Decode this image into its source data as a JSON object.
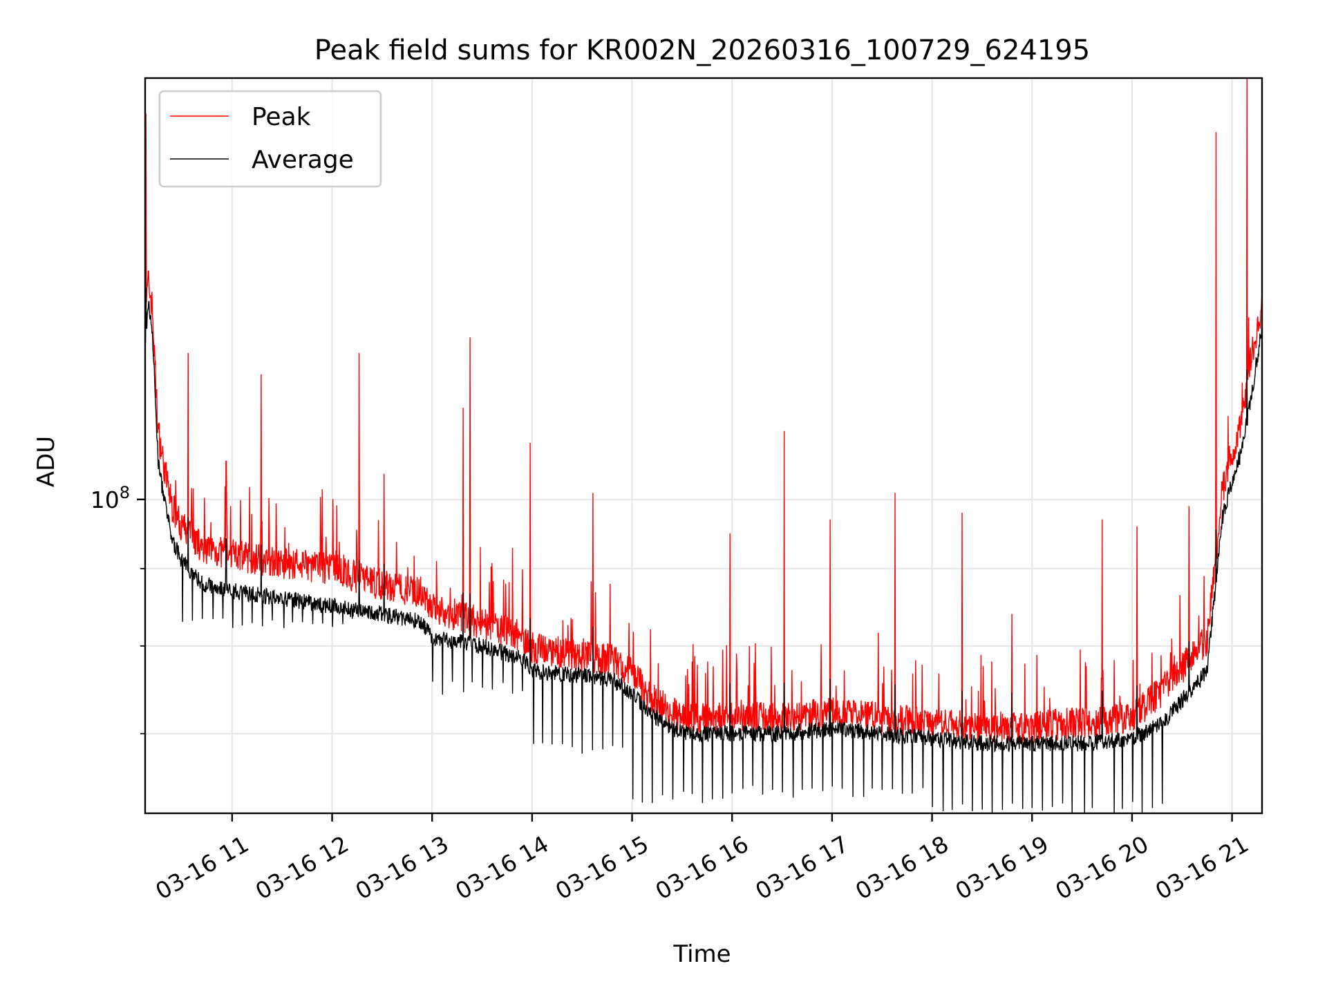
{
  "chart_data": {
    "type": "line",
    "title": "Peak field sums for KR002N_20260316_100729_624195",
    "xlabel": "Time",
    "ylabel": "ADU",
    "yscale": "log",
    "ylim": [
      62000000,
      190000000
    ],
    "xlim_hours": [
      10.13,
      21.3
    ],
    "grid": true,
    "legend_position": "upper-left",
    "x_ticks": [
      {
        "hour": 11,
        "label": "03-16 11"
      },
      {
        "hour": 12,
        "label": "03-16 12"
      },
      {
        "hour": 13,
        "label": "03-16 13"
      },
      {
        "hour": 14,
        "label": "03-16 14"
      },
      {
        "hour": 15,
        "label": "03-16 15"
      },
      {
        "hour": 16,
        "label": "03-16 16"
      },
      {
        "hour": 17,
        "label": "03-16 17"
      },
      {
        "hour": 18,
        "label": "03-16 18"
      },
      {
        "hour": 19,
        "label": "03-16 19"
      },
      {
        "hour": 20,
        "label": "03-16 20"
      },
      {
        "hour": 21,
        "label": "03-16 21"
      }
    ],
    "y_major_ticks": [
      {
        "value": 100000000,
        "base": "10",
        "exp": "8"
      }
    ],
    "y_minor_ticks": [
      90000000,
      80000000,
      70000000
    ],
    "series": [
      {
        "name": "Peak",
        "color": "#ff0000",
        "baseline_hours": [
          10.13,
          10.16,
          10.2,
          10.26,
          10.32,
          10.4,
          10.5,
          10.7,
          11.0,
          11.5,
          12.0,
          12.5,
          12.9,
          13.0,
          13.5,
          13.9,
          14.0,
          14.5,
          14.8,
          15.0,
          15.2,
          15.5,
          16.0,
          16.5,
          17.0,
          17.5,
          18.0,
          18.5,
          19.0,
          19.5,
          20.0,
          20.3,
          20.6,
          20.75,
          20.9,
          21.0,
          21.1,
          21.2,
          21.3
        ],
        "baseline_values": [
          130000000,
          138000000,
          133000000,
          110000000,
          104000000,
          98000000,
          95000000,
          92000000,
          91000000,
          90000000,
          89000000,
          87000000,
          86000000,
          84000000,
          82000000,
          80500000,
          79000000,
          78000000,
          77500000,
          76000000,
          73000000,
          71000000,
          71000000,
          71000000,
          71500000,
          71000000,
          70500000,
          70000000,
          70000000,
          70500000,
          71000000,
          74000000,
          78000000,
          80000000,
          100000000,
          106000000,
          112000000,
          124000000,
          133000000
        ],
        "spikes": [
          {
            "hour": 10.14,
            "value": 180000000
          },
          {
            "hour": 10.56,
            "value": 125000000
          },
          {
            "hour": 10.94,
            "value": 106000000
          },
          {
            "hour": 11.29,
            "value": 121000000
          },
          {
            "hour": 12.27,
            "value": 125000000
          },
          {
            "hour": 12.52,
            "value": 104000000
          },
          {
            "hour": 13.31,
            "value": 115000000
          },
          {
            "hour": 13.38,
            "value": 128000000
          },
          {
            "hour": 13.98,
            "value": 109000000
          },
          {
            "hour": 14.61,
            "value": 101000000
          },
          {
            "hour": 15.98,
            "value": 95000000
          },
          {
            "hour": 16.52,
            "value": 111000000
          },
          {
            "hour": 16.98,
            "value": 97000000
          },
          {
            "hour": 17.63,
            "value": 101000000
          },
          {
            "hour": 18.3,
            "value": 98000000
          },
          {
            "hour": 18.8,
            "value": 84000000
          },
          {
            "hour": 19.7,
            "value": 97000000
          },
          {
            "hour": 20.05,
            "value": 96000000
          },
          {
            "hour": 20.57,
            "value": 99000000
          },
          {
            "hour": 20.84,
            "value": 175000000
          },
          {
            "hour": 21.15,
            "value": 190000000
          }
        ]
      },
      {
        "name": "Average",
        "color": "#000000",
        "baseline_hours": [
          10.13,
          10.16,
          10.2,
          10.26,
          10.32,
          10.4,
          10.5,
          10.7,
          11.0,
          11.5,
          12.0,
          12.5,
          12.9,
          13.0,
          13.5,
          13.9,
          14.0,
          14.5,
          14.8,
          15.0,
          15.2,
          15.5,
          16.0,
          16.5,
          17.0,
          17.5,
          18.0,
          18.5,
          19.0,
          19.5,
          20.0,
          20.3,
          20.6,
          20.75,
          20.9,
          21.0,
          21.1,
          21.2,
          21.3
        ],
        "baseline_values": [
          125000000,
          135000000,
          130000000,
          106000000,
          100000000,
          94000000,
          91000000,
          88000000,
          87000000,
          86000000,
          85000000,
          84000000,
          83000000,
          81000000,
          80000000,
          78500000,
          77000000,
          76500000,
          76000000,
          74500000,
          72000000,
          70000000,
          70000000,
          70000000,
          70500000,
          70000000,
          69500000,
          69000000,
          69000000,
          69000000,
          69500000,
          71000000,
          75000000,
          77000000,
          97000000,
          103000000,
          108000000,
          118000000,
          130000000
        ],
        "dips": [
          {
            "from_hour": 10.5,
            "to_hour": 13.0,
            "value": 83000000
          },
          {
            "from_hour": 13.0,
            "to_hour": 14.0,
            "value": 75000000
          },
          {
            "from_hour": 14.0,
            "to_hour": 15.0,
            "value": 68500000
          },
          {
            "from_hour": 15.0,
            "to_hour": 16.0,
            "value": 63500000
          },
          {
            "from_hour": 16.0,
            "to_hour": 18.0,
            "value": 64000000
          },
          {
            "from_hour": 18.0,
            "to_hour": 20.4,
            "value": 62500000
          }
        ]
      }
    ]
  }
}
